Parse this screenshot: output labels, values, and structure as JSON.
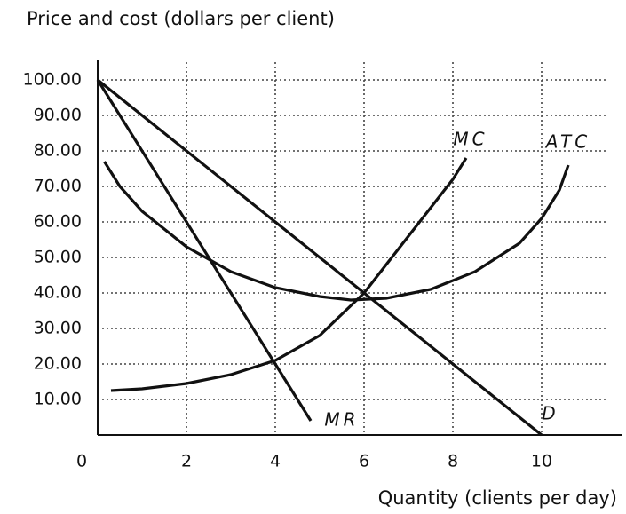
{
  "chart_data": {
    "type": "line",
    "ylabel": "Price and cost (dollars per client)",
    "xlabel": "Quantity (clients per day)",
    "xlim": [
      0,
      11.8
    ],
    "ylim": [
      0,
      105
    ],
    "xticks": [
      0,
      2,
      4,
      6,
      8,
      10
    ],
    "yticks": [
      {
        "value": 10,
        "label": "10.00"
      },
      {
        "value": 20,
        "label": "20.00"
      },
      {
        "value": 30,
        "label": "30.00"
      },
      {
        "value": 40,
        "label": "40.00"
      },
      {
        "value": 50,
        "label": "50.00"
      },
      {
        "value": 60,
        "label": "60.00"
      },
      {
        "value": 70,
        "label": "70.00"
      },
      {
        "value": 80,
        "label": "80.00"
      },
      {
        "value": 90,
        "label": "90.00"
      },
      {
        "value": 100,
        "label": "100.00"
      }
    ],
    "grid": true,
    "series": [
      {
        "name": "MC",
        "color": "#111111",
        "x": [
          0.3,
          1,
          2,
          3,
          4,
          5,
          6,
          7,
          8,
          8.3
        ],
        "values": [
          12.5,
          13,
          14.5,
          17,
          21,
          28,
          40,
          56,
          72,
          78
        ]
      },
      {
        "name": "ATC",
        "color": "#111111",
        "x": [
          0.15,
          0.5,
          1,
          2,
          3,
          4,
          5,
          5.7,
          6.5,
          7.5,
          8.5,
          9.5,
          10,
          10.4,
          10.6
        ],
        "values": [
          77,
          70,
          63,
          53,
          46,
          41.5,
          39,
          38,
          38.5,
          41,
          46,
          54,
          61,
          69,
          76
        ]
      },
      {
        "name": "MR",
        "color": "#111111",
        "x": [
          0,
          4.8
        ],
        "values": [
          100,
          4
        ]
      },
      {
        "name": "D",
        "color": "#111111",
        "x": [
          0,
          10
        ],
        "values": [
          100,
          0
        ]
      }
    ]
  }
}
